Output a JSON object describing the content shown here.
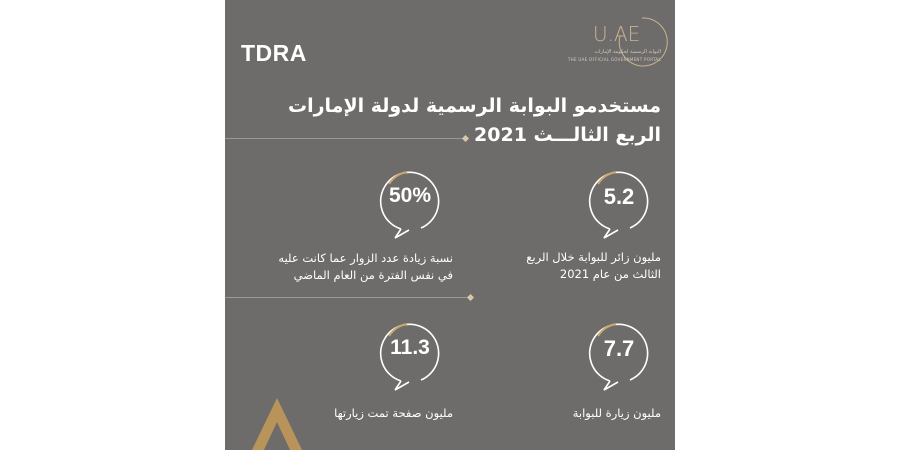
{
  "brand": {
    "tdra_logo": "TDRA",
    "uae_logo": "U.AE",
    "uae_tagline_ar": "البوابة الرسمية لحكومة الإمارات",
    "uae_tagline_en": "THE UAE OFFICIAL GOVERNMENT PORTAL"
  },
  "title": {
    "line1": "مستخدمو البوابة الرسمية لدولة الإمارات",
    "line2": "الربع الثالـــث 2021"
  },
  "stats": [
    {
      "value": "5.2",
      "caption_line1": "مليون زائر للبوابة خلال الربع",
      "caption_line2": "الثالث من عام 2021"
    },
    {
      "value": "50%",
      "caption_line1": "نسبة زيادة عدد الزوار عما كانت عليه",
      "caption_line2": "في نفس الفترة من العام الماضي"
    },
    {
      "value": "7.7",
      "caption_line1": "مليون زيارة للبوابة",
      "caption_line2": ""
    },
    {
      "value": "11.3",
      "caption_line1": "مليون صفحة تمت زيارتها",
      "caption_line2": ""
    }
  ],
  "colors": {
    "panel": "#6e6c6b",
    "accent": "#c9a66b",
    "text": "#ffffff"
  }
}
